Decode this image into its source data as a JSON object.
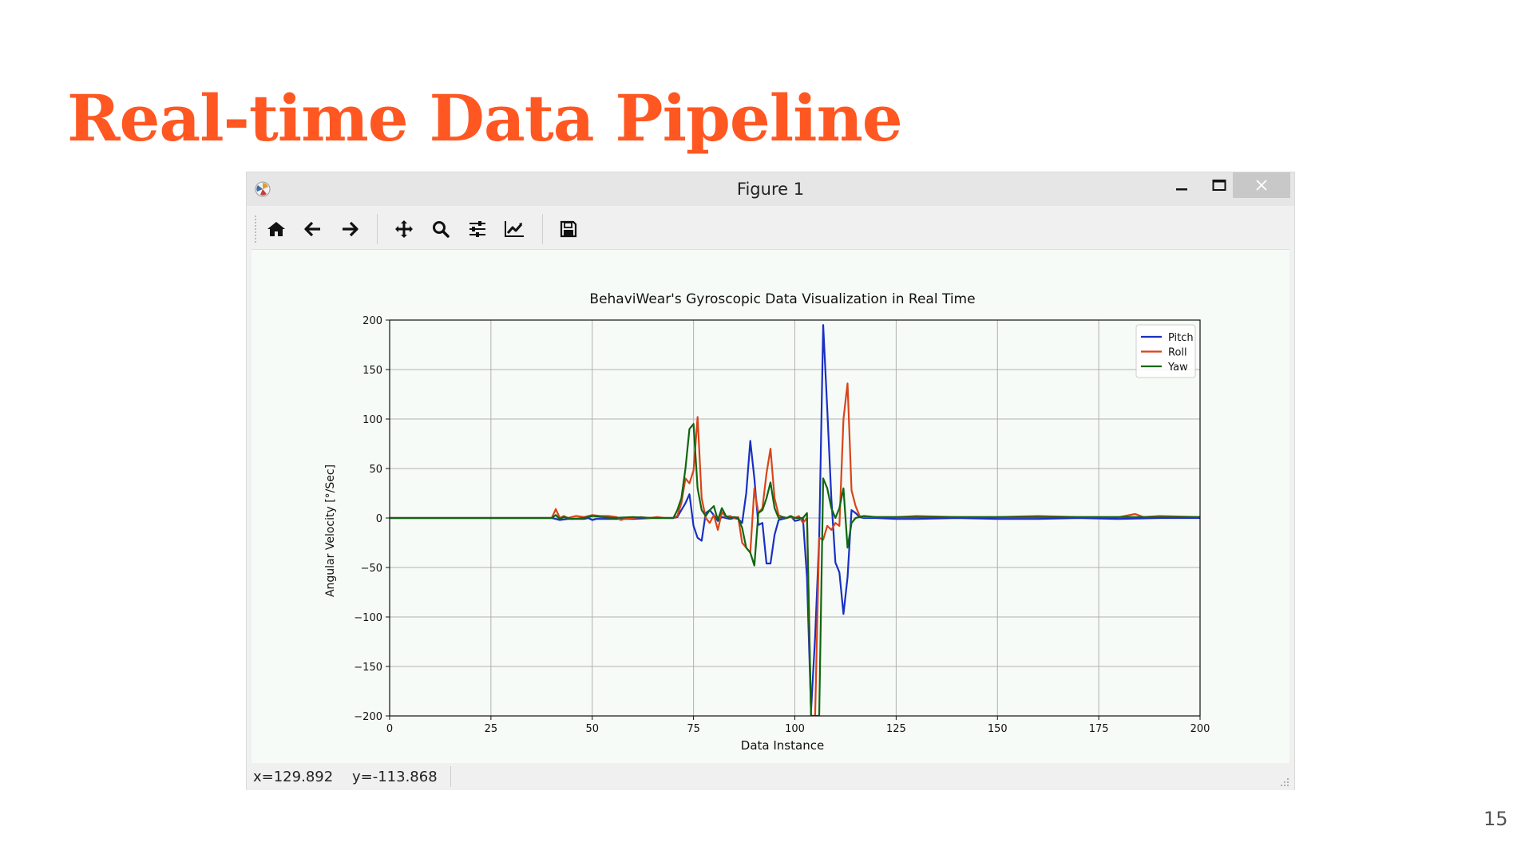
{
  "slide": {
    "title": "Real-time Data Pipeline",
    "page_number": "15",
    "accent_color": "#ff5722"
  },
  "window": {
    "title": "Figure 1",
    "app_icon": "matplotlib-icon",
    "controls": [
      "minimize-icon",
      "maximize-icon",
      "close-icon"
    ]
  },
  "toolbar": {
    "buttons": [
      "home-icon",
      "back-arrow-icon",
      "forward-arrow-icon",
      "pan-icon",
      "zoom-icon",
      "subplots-icon",
      "edit-axis-icon",
      "save-icon"
    ]
  },
  "status": {
    "x_text": "x=129.892",
    "y_text": "y=-113.868"
  },
  "chart_data": {
    "type": "line",
    "title": "BehaviWear's Gyroscopic Data Visualization in Real Time",
    "xlabel": "Data Instance",
    "ylabel": "Angular Velocity [°/Sec]",
    "xlim": [
      0,
      200
    ],
    "ylim": [
      -200,
      200
    ],
    "xticks": [
      0,
      25,
      50,
      75,
      100,
      125,
      150,
      175,
      200
    ],
    "xtick_labels": [
      "0",
      "25",
      "50",
      "75",
      "100",
      "125",
      "150",
      "175",
      "200"
    ],
    "yticks": [
      200,
      150,
      100,
      50,
      0,
      -50,
      -100,
      -150,
      -200
    ],
    "ytick_labels": [
      "200",
      "150",
      "100",
      "50",
      "0",
      "−50",
      "−100",
      "−150",
      "−200"
    ],
    "grid": true,
    "legend": "top-right",
    "series": [
      {
        "name": "Pitch",
        "color": "#1a2fc4",
        "points": [
          [
            0,
            0
          ],
          [
            40,
            0
          ],
          [
            41,
            -1
          ],
          [
            42,
            -2
          ],
          [
            44,
            -1
          ],
          [
            46,
            -1
          ],
          [
            48,
            -1
          ],
          [
            49,
            0
          ],
          [
            50,
            -2
          ],
          [
            51,
            -1
          ],
          [
            55,
            -1
          ],
          [
            60,
            -1
          ],
          [
            65,
            0
          ],
          [
            70,
            0
          ],
          [
            71,
            1
          ],
          [
            72,
            8
          ],
          [
            73,
            15
          ],
          [
            74,
            24
          ],
          [
            75,
            -8
          ],
          [
            76,
            -20
          ],
          [
            77,
            -23
          ],
          [
            78,
            5
          ],
          [
            79,
            8
          ],
          [
            80,
            3
          ],
          [
            81,
            -3
          ],
          [
            82,
            1
          ],
          [
            83,
            0
          ],
          [
            84,
            -1
          ],
          [
            85,
            0
          ],
          [
            86,
            -1
          ],
          [
            87,
            -5
          ],
          [
            88,
            25
          ],
          [
            89,
            78
          ],
          [
            90,
            40
          ],
          [
            91,
            -7
          ],
          [
            92,
            -5
          ],
          [
            93,
            -46
          ],
          [
            94,
            -46
          ],
          [
            95,
            -17
          ],
          [
            96,
            -2
          ],
          [
            97,
            -1
          ],
          [
            98,
            0
          ],
          [
            99,
            2
          ],
          [
            100,
            -3
          ],
          [
            101,
            -2
          ],
          [
            102,
            0
          ],
          [
            103,
            -60
          ],
          [
            104,
            -195
          ],
          [
            105,
            -120
          ],
          [
            106,
            -20
          ],
          [
            107,
            195
          ],
          [
            108,
            110
          ],
          [
            109,
            20
          ],
          [
            110,
            -45
          ],
          [
            111,
            -55
          ],
          [
            112,
            -97
          ],
          [
            113,
            -60
          ],
          [
            114,
            8
          ],
          [
            115,
            5
          ],
          [
            116,
            1
          ],
          [
            117,
            0
          ],
          [
            120,
            0
          ],
          [
            125,
            -1
          ],
          [
            130,
            -1
          ],
          [
            140,
            0
          ],
          [
            150,
            -1
          ],
          [
            160,
            -1
          ],
          [
            170,
            0
          ],
          [
            180,
            -1
          ],
          [
            190,
            0
          ],
          [
            200,
            0
          ]
        ]
      },
      {
        "name": "Roll",
        "color": "#d9441a",
        "points": [
          [
            0,
            0
          ],
          [
            40,
            0
          ],
          [
            41,
            9
          ],
          [
            42,
            0
          ],
          [
            43,
            2
          ],
          [
            44,
            0
          ],
          [
            46,
            2
          ],
          [
            48,
            1
          ],
          [
            50,
            3
          ],
          [
            52,
            2
          ],
          [
            54,
            2
          ],
          [
            56,
            1
          ],
          [
            57,
            -2
          ],
          [
            58,
            -1
          ],
          [
            60,
            0
          ],
          [
            62,
            1
          ],
          [
            64,
            0
          ],
          [
            66,
            1
          ],
          [
            68,
            0
          ],
          [
            70,
            0
          ],
          [
            71,
            2
          ],
          [
            72,
            15
          ],
          [
            73,
            40
          ],
          [
            74,
            35
          ],
          [
            75,
            48
          ],
          [
            76,
            102
          ],
          [
            77,
            20
          ],
          [
            78,
            0
          ],
          [
            79,
            -5
          ],
          [
            80,
            3
          ],
          [
            81,
            -12
          ],
          [
            82,
            6
          ],
          [
            83,
            1
          ],
          [
            84,
            2
          ],
          [
            85,
            0
          ],
          [
            86,
            1
          ],
          [
            87,
            -25
          ],
          [
            88,
            -30
          ],
          [
            89,
            -35
          ],
          [
            90,
            30
          ],
          [
            91,
            5
          ],
          [
            92,
            10
          ],
          [
            93,
            45
          ],
          [
            94,
            70
          ],
          [
            95,
            20
          ],
          [
            96,
            3
          ],
          [
            97,
            1
          ],
          [
            98,
            0
          ],
          [
            99,
            1
          ],
          [
            100,
            0
          ],
          [
            101,
            2
          ],
          [
            102,
            -5
          ],
          [
            103,
            0
          ],
          [
            104,
            -200
          ],
          [
            105,
            -200
          ],
          [
            106,
            -20
          ],
          [
            107,
            -22
          ],
          [
            108,
            -8
          ],
          [
            109,
            -12
          ],
          [
            110,
            -5
          ],
          [
            111,
            -8
          ],
          [
            112,
            100
          ],
          [
            113,
            136
          ],
          [
            114,
            28
          ],
          [
            115,
            12
          ],
          [
            116,
            2
          ],
          [
            117,
            1
          ],
          [
            120,
            1
          ],
          [
            125,
            1
          ],
          [
            130,
            2
          ],
          [
            140,
            1
          ],
          [
            150,
            1
          ],
          [
            160,
            2
          ],
          [
            170,
            1
          ],
          [
            180,
            1
          ],
          [
            184,
            4
          ],
          [
            186,
            1
          ],
          [
            190,
            2
          ],
          [
            200,
            1
          ]
        ]
      },
      {
        "name": "Yaw",
        "color": "#106610",
        "points": [
          [
            0,
            0
          ],
          [
            40,
            0
          ],
          [
            41,
            3
          ],
          [
            42,
            -1
          ],
          [
            43,
            1
          ],
          [
            45,
            -1
          ],
          [
            48,
            0
          ],
          [
            50,
            2
          ],
          [
            55,
            0
          ],
          [
            60,
            1
          ],
          [
            65,
            0
          ],
          [
            70,
            0
          ],
          [
            71,
            8
          ],
          [
            72,
            20
          ],
          [
            73,
            50
          ],
          [
            74,
            90
          ],
          [
            75,
            95
          ],
          [
            76,
            30
          ],
          [
            77,
            8
          ],
          [
            78,
            2
          ],
          [
            79,
            8
          ],
          [
            80,
            12
          ],
          [
            81,
            -2
          ],
          [
            82,
            10
          ],
          [
            83,
            2
          ],
          [
            84,
            0
          ],
          [
            85,
            1
          ],
          [
            86,
            0
          ],
          [
            87,
            -10
          ],
          [
            88,
            -30
          ],
          [
            89,
            -35
          ],
          [
            90,
            -48
          ],
          [
            91,
            5
          ],
          [
            92,
            8
          ],
          [
            93,
            20
          ],
          [
            94,
            36
          ],
          [
            95,
            10
          ],
          [
            96,
            0
          ],
          [
            97,
            1
          ],
          [
            98,
            0
          ],
          [
            99,
            2
          ],
          [
            100,
            0
          ],
          [
            101,
            0
          ],
          [
            102,
            0
          ],
          [
            103,
            5
          ],
          [
            104,
            -200
          ],
          [
            105,
            -200
          ],
          [
            106,
            -200
          ],
          [
            107,
            40
          ],
          [
            108,
            30
          ],
          [
            109,
            10
          ],
          [
            110,
            0
          ],
          [
            111,
            10
          ],
          [
            112,
            30
          ],
          [
            113,
            -30
          ],
          [
            114,
            -5
          ],
          [
            115,
            0
          ],
          [
            116,
            1
          ],
          [
            117,
            2
          ],
          [
            120,
            1
          ],
          [
            125,
            1
          ],
          [
            130,
            1
          ],
          [
            140,
            1
          ],
          [
            150,
            1
          ],
          [
            160,
            1
          ],
          [
            170,
            1
          ],
          [
            180,
            1
          ],
          [
            190,
            1
          ],
          [
            200,
            1
          ]
        ]
      }
    ]
  }
}
